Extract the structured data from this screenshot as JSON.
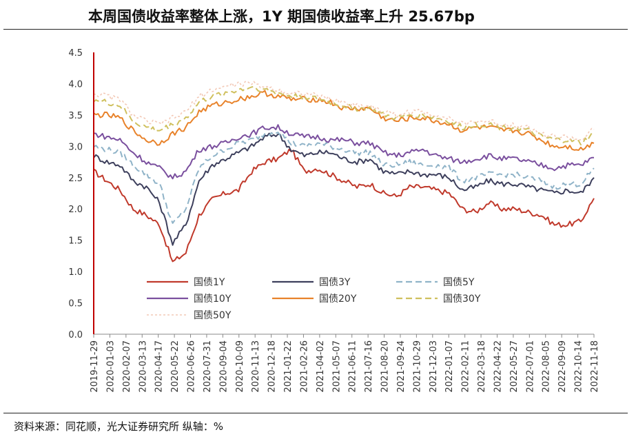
{
  "header": {
    "title": "本周国债收益率整体上涨，1Y 期国债收益率上升 25.67bp"
  },
  "footer": {
    "source": "资料来源：同花顺，光大证券研究所  纵轴：%"
  },
  "colors": {
    "axis": "#c00000",
    "1Y": "#c0392b",
    "3Y": "#3d3f5c",
    "5Y": "#8fb3c8",
    "10Y": "#7a4f9e",
    "20Y": "#e8822a",
    "30Y": "#cfc05e",
    "50Y": "#f3c8b5"
  },
  "chart_data": {
    "type": "line",
    "title": "本周国债收益率整体上涨，1Y 期国债收益率上升 25.67bp",
    "ylim": [
      0.0,
      4.5
    ],
    "y_ticks": [
      "4.5",
      "4.0",
      "3.5",
      "3.0",
      "2.5",
      "2.0",
      "1.5",
      "1.0",
      "0.5",
      "0.0"
    ],
    "x_ticks": [
      "2019-11-29",
      "2020-01-03",
      "2020-02-07",
      "2020-03-13",
      "2020-04-17",
      "2020-05-22",
      "2020-06-26",
      "2020-07-31",
      "2020-09-04",
      "2020-10-09",
      "2020-11-13",
      "2020-12-18",
      "2021-01-22",
      "2021-02-26",
      "2021-04-02",
      "2021-05-07",
      "2021-06-11",
      "2021-07-16",
      "2021-08-20",
      "2021-09-24",
      "2021-10-29",
      "2021-12-03",
      "2022-01-07",
      "2022-02-11",
      "2022-03-18",
      "2022-04-22",
      "2022-05-27",
      "2022-07-01",
      "2022-08-05",
      "2022-09-09",
      "2022-10-14",
      "2022-11-18"
    ],
    "legend_position": "lower-left inside",
    "grid": false,
    "series": [
      {
        "name": "国债1Y",
        "style": "solid",
        "values": [
          2.6,
          2.45,
          2.3,
          2.0,
          1.9,
          1.75,
          1.15,
          1.3,
          1.9,
          2.15,
          2.25,
          2.3,
          2.6,
          2.75,
          2.8,
          2.95,
          2.6,
          2.65,
          2.55,
          2.45,
          2.35,
          2.4,
          2.25,
          2.2,
          2.35,
          2.35,
          2.3,
          2.25,
          2.0,
          1.95,
          2.1,
          2.0,
          2.0,
          1.95,
          1.9,
          1.75,
          1.75,
          1.8,
          2.17
        ]
      },
      {
        "name": "国债3Y",
        "style": "solid",
        "values": [
          2.85,
          2.75,
          2.7,
          2.45,
          2.35,
          2.1,
          1.45,
          1.75,
          2.45,
          2.7,
          2.8,
          2.9,
          3.0,
          3.15,
          3.2,
          2.95,
          2.85,
          2.9,
          2.9,
          2.8,
          2.75,
          2.8,
          2.6,
          2.55,
          2.6,
          2.55,
          2.55,
          2.5,
          2.3,
          2.35,
          2.45,
          2.4,
          2.4,
          2.35,
          2.3,
          2.25,
          2.3,
          2.25,
          2.5
        ]
      },
      {
        "name": "国债5Y",
        "style": "dashed",
        "values": [
          3.0,
          2.95,
          2.9,
          2.7,
          2.55,
          2.4,
          1.75,
          2.0,
          2.65,
          2.85,
          2.95,
          3.05,
          3.1,
          3.2,
          3.25,
          3.05,
          3.0,
          3.05,
          3.0,
          2.95,
          2.9,
          2.9,
          2.7,
          2.7,
          2.75,
          2.7,
          2.7,
          2.65,
          2.45,
          2.5,
          2.55,
          2.55,
          2.55,
          2.5,
          2.45,
          2.35,
          2.4,
          2.4,
          2.65
        ]
      },
      {
        "name": "国债10Y",
        "style": "solid",
        "values": [
          3.2,
          3.15,
          3.1,
          2.9,
          2.75,
          2.65,
          2.5,
          2.6,
          2.95,
          3.0,
          3.05,
          3.15,
          3.2,
          3.3,
          3.3,
          3.2,
          3.15,
          3.15,
          3.1,
          3.1,
          3.05,
          3.05,
          2.9,
          2.85,
          2.9,
          2.95,
          2.85,
          2.8,
          2.75,
          2.8,
          2.85,
          2.8,
          2.8,
          2.75,
          2.7,
          2.65,
          2.7,
          2.7,
          2.82
        ]
      },
      {
        "name": "国债20Y",
        "style": "solid",
        "values": [
          3.5,
          3.5,
          3.45,
          3.25,
          3.1,
          3.05,
          3.2,
          3.3,
          3.55,
          3.65,
          3.7,
          3.75,
          3.8,
          3.85,
          3.8,
          3.75,
          3.75,
          3.75,
          3.7,
          3.6,
          3.6,
          3.6,
          3.45,
          3.4,
          3.45,
          3.45,
          3.4,
          3.35,
          3.25,
          3.3,
          3.3,
          3.25,
          3.25,
          3.2,
          3.1,
          3.0,
          3.0,
          2.95,
          3.05
        ]
      },
      {
        "name": "国债30Y",
        "style": "dashed",
        "values": [
          3.75,
          3.7,
          3.65,
          3.4,
          3.3,
          3.25,
          3.35,
          3.45,
          3.7,
          3.8,
          3.85,
          3.9,
          3.95,
          3.9,
          3.85,
          3.8,
          3.8,
          3.75,
          3.7,
          3.65,
          3.6,
          3.6,
          3.5,
          3.45,
          3.5,
          3.5,
          3.45,
          3.4,
          3.3,
          3.35,
          3.35,
          3.3,
          3.3,
          3.25,
          3.15,
          3.1,
          3.1,
          3.05,
          3.2
        ]
      },
      {
        "name": "国债50Y",
        "style": "dotted",
        "values": [
          3.85,
          3.8,
          3.75,
          3.5,
          3.4,
          3.35,
          3.45,
          3.55,
          3.8,
          3.9,
          3.95,
          4.0,
          4.0,
          3.95,
          3.9,
          3.85,
          3.85,
          3.8,
          3.75,
          3.7,
          3.65,
          3.65,
          3.55,
          3.5,
          3.55,
          3.55,
          3.5,
          3.45,
          3.35,
          3.4,
          3.4,
          3.35,
          3.35,
          3.3,
          3.2,
          3.15,
          3.15,
          3.1,
          3.27
        ]
      }
    ]
  }
}
